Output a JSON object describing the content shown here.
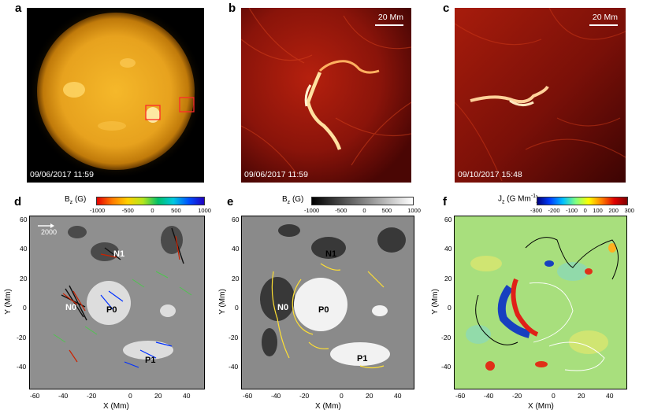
{
  "panels": {
    "a": {
      "letter": "a",
      "timestamp": "09/06/2017 11:59"
    },
    "b": {
      "letter": "b",
      "timestamp": "09/06/2017 11:59",
      "scale": "20 Mm"
    },
    "c": {
      "letter": "c",
      "timestamp": "09/10/2017 15:48",
      "scale": "20 Mm"
    },
    "d": {
      "letter": "d",
      "colorbar_title": "B",
      "colorbar_sub": "z",
      "colorbar_unit": " (G)",
      "colorbar_ticks": [
        "-1000",
        "-500",
        "0",
        "500",
        "1000"
      ],
      "arrow_scale": "2000",
      "labels": {
        "n1": "N1",
        "n0": "N0",
        "p0": "P0",
        "p1": "P1"
      }
    },
    "e": {
      "letter": "e",
      "colorbar_title": "B",
      "colorbar_sub": "z",
      "colorbar_unit": " (G)",
      "colorbar_ticks": [
        "-1000",
        "-500",
        "0",
        "500",
        "1000"
      ],
      "labels": {
        "n1": "N1",
        "n0": "N0",
        "p0": "P0",
        "p1": "P1"
      }
    },
    "f": {
      "letter": "f",
      "colorbar_title": "J",
      "colorbar_sub": "z",
      "colorbar_unit": " (G Mm",
      "colorbar_sup": "-1",
      "colorbar_close": ")",
      "colorbar_ticks": [
        "-300",
        "-200",
        "-100",
        "0",
        "100",
        "200",
        "300"
      ]
    }
  },
  "axes": {
    "xlabel": "X (Mm)",
    "ylabel": "Y (Mm)",
    "xticks": [
      "-60",
      "-40",
      "-20",
      "0",
      "20",
      "40"
    ],
    "yticks": [
      "60",
      "40",
      "20",
      "0",
      "-20",
      "-40"
    ]
  },
  "colors": {
    "sun_core": "#f5b82a",
    "sun_edge": "#c07a0a",
    "euv_bright": "#ffd08a",
    "euv_dark": "#5a0a06",
    "contour_yellow": "#ffe033",
    "box_red": "#ff2a2a"
  }
}
